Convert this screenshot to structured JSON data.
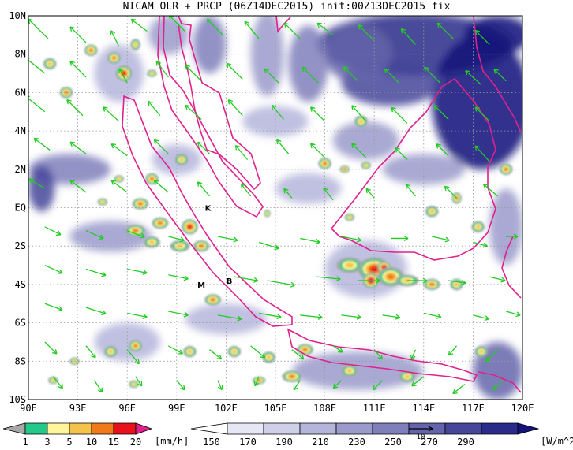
{
  "title": "NICAM OLR + PRCP (06Z14DEC2015) init:00Z13DEC2015 fix",
  "map": {
    "lon_range": [
      90,
      120
    ],
    "lat_range": [
      -10,
      10
    ],
    "x_ticks": [
      {
        "lon": 90,
        "label": "90E"
      },
      {
        "lon": 93,
        "label": "93E"
      },
      {
        "lon": 96,
        "label": "96E"
      },
      {
        "lon": 99,
        "label": "99E"
      },
      {
        "lon": 102,
        "label": "102E"
      },
      {
        "lon": 105,
        "label": "105E"
      },
      {
        "lon": 108,
        "label": "108E"
      },
      {
        "lon": 111,
        "label": "111E"
      },
      {
        "lon": 114,
        "label": "114E"
      },
      {
        "lon": 117,
        "label": "117E"
      },
      {
        "lon": 120,
        "label": "120E"
      }
    ],
    "y_ticks": [
      {
        "lat": 10,
        "label": "10N"
      },
      {
        "lat": 8,
        "label": "8N"
      },
      {
        "lat": 6,
        "label": "6N"
      },
      {
        "lat": 4,
        "label": "4N"
      },
      {
        "lat": 2,
        "label": "2N"
      },
      {
        "lat": 0,
        "label": "EQ"
      },
      {
        "lat": -2,
        "label": "2S"
      },
      {
        "lat": -4,
        "label": "4S"
      },
      {
        "lat": -6,
        "label": "6S"
      },
      {
        "lat": -8,
        "label": "8S"
      },
      {
        "lat": -10,
        "label": "10S"
      }
    ],
    "site_markers": [
      {
        "label": "K",
        "lon": 100.9,
        "lat": 0.0
      },
      {
        "label": "B",
        "lon": 102.2,
        "lat": -3.8
      },
      {
        "label": "M",
        "lon": 100.5,
        "lat": -4.0
      }
    ],
    "colors": {
      "coast": "#e0208c",
      "wind": "#22cc22",
      "grid": "#999999"
    }
  },
  "prcp_colorbar": {
    "unit": "[mm/h]",
    "levels": [
      "1",
      "3",
      "5",
      "10",
      "15",
      "20"
    ],
    "colors": [
      "#a8a8a8",
      "#22c98a",
      "#fff59c",
      "#f5c24a",
      "#f07a1a",
      "#e8101a",
      "#e0208c"
    ]
  },
  "olr_colorbar": {
    "unit": "[W/m^2]",
    "levels": [
      "150",
      "170",
      "190",
      "210",
      "230",
      "250",
      "270",
      "290"
    ],
    "colors": [
      "#ffffff",
      "#e6e6f5",
      "#cfcfea",
      "#b5b5dc",
      "#9a9acb",
      "#7f7fbc",
      "#6464ac",
      "#45459a",
      "#2a2a8a",
      "#13137a"
    ],
    "ref_vector_label": "10"
  },
  "wind_vectors": [
    [
      91.2,
      8.8,
      -25,
      25
    ],
    [
      93.5,
      8.6,
      -20,
      20
    ],
    [
      95.5,
      8.4,
      -10,
      20
    ],
    [
      97.2,
      9.2,
      -20,
      15
    ],
    [
      99.5,
      9.2,
      -20,
      20
    ],
    [
      101.8,
      9.0,
      -20,
      20
    ],
    [
      104.0,
      8.8,
      -18,
      22
    ],
    [
      106.5,
      8.8,
      -20,
      20
    ],
    [
      108.5,
      9.0,
      -20,
      15
    ],
    [
      111.0,
      8.7,
      -20,
      20
    ],
    [
      113.5,
      8.5,
      -18,
      20
    ],
    [
      115.8,
      8.8,
      -20,
      20
    ],
    [
      118.0,
      8.5,
      -18,
      18
    ],
    [
      91.0,
      7.0,
      -25,
      20
    ],
    [
      93.5,
      6.8,
      -20,
      20
    ],
    [
      96.0,
      6.5,
      -10,
      18
    ],
    [
      98.5,
      6.8,
      -15,
      20
    ],
    [
      100.5,
      6.6,
      -20,
      20
    ],
    [
      103.0,
      6.7,
      -20,
      20
    ],
    [
      105.2,
      6.5,
      -18,
      18
    ],
    [
      107.6,
      6.5,
      -20,
      20
    ],
    [
      110.0,
      6.6,
      -18,
      18
    ],
    [
      112.5,
      6.5,
      -18,
      18
    ],
    [
      115.0,
      6.5,
      -20,
      20
    ],
    [
      117.5,
      6.4,
      -20,
      18
    ],
    [
      119.0,
      6.6,
      -15,
      15
    ],
    [
      91.0,
      5.0,
      -25,
      20
    ],
    [
      93.3,
      4.8,
      -20,
      20
    ],
    [
      95.5,
      4.5,
      -20,
      18
    ],
    [
      98.0,
      4.8,
      -15,
      18
    ],
    [
      100.5,
      4.6,
      -20,
      18
    ],
    [
      103.0,
      4.8,
      -18,
      20
    ],
    [
      105.5,
      4.6,
      -15,
      18
    ],
    [
      108.0,
      4.5,
      -18,
      18
    ],
    [
      110.5,
      4.5,
      -18,
      20
    ],
    [
      113.0,
      4.4,
      -20,
      20
    ],
    [
      115.5,
      4.6,
      -18,
      18
    ],
    [
      118.0,
      4.5,
      -18,
      18
    ],
    [
      91.3,
      3.0,
      -20,
      15
    ],
    [
      93.5,
      2.8,
      -20,
      15
    ],
    [
      96.0,
      2.7,
      -20,
      15
    ],
    [
      98.5,
      2.8,
      -18,
      18
    ],
    [
      101.0,
      2.8,
      -15,
      15
    ],
    [
      103.3,
      2.5,
      -15,
      18
    ],
    [
      105.8,
      2.8,
      -15,
      18
    ],
    [
      108.0,
      2.6,
      -18,
      18
    ],
    [
      110.5,
      2.6,
      -18,
      18
    ],
    [
      113.0,
      2.5,
      -15,
      15
    ],
    [
      115.5,
      2.7,
      -15,
      15
    ],
    [
      118.0,
      2.4,
      -18,
      20
    ],
    [
      91.0,
      1.0,
      -20,
      12
    ],
    [
      93.5,
      0.8,
      -20,
      15
    ],
    [
      96.0,
      0.8,
      -20,
      15
    ],
    [
      98.5,
      0.8,
      -18,
      15
    ],
    [
      101.0,
      0.6,
      -15,
      18
    ],
    [
      103.5,
      0.6,
      -12,
      15
    ],
    [
      106.0,
      0.5,
      -10,
      12
    ],
    [
      108.5,
      0.4,
      -12,
      15
    ],
    [
      111.0,
      0.5,
      -10,
      12
    ],
    [
      113.5,
      0.6,
      -12,
      15
    ],
    [
      116.0,
      0.5,
      -15,
      15
    ],
    [
      118.5,
      0.6,
      -18,
      15
    ],
    [
      91.0,
      -1.0,
      20,
      -10
    ],
    [
      93.5,
      -1.2,
      22,
      -10
    ],
    [
      96.0,
      -1.2,
      22,
      -8
    ],
    [
      98.5,
      -1.5,
      20,
      -5
    ],
    [
      101.5,
      -1.5,
      25,
      -5
    ],
    [
      104.0,
      -1.8,
      25,
      -8
    ],
    [
      106.5,
      -1.6,
      25,
      -5
    ],
    [
      109.0,
      -1.5,
      25,
      -5
    ],
    [
      112.0,
      -1.6,
      22,
      0
    ],
    [
      114.5,
      -1.5,
      22,
      -5
    ],
    [
      117.0,
      -1.8,
      18,
      -5
    ],
    [
      119.0,
      -1.5,
      15,
      0
    ],
    [
      91.0,
      -3.0,
      22,
      -10
    ],
    [
      93.5,
      -3.2,
      25,
      -8
    ],
    [
      96.0,
      -3.2,
      25,
      -5
    ],
    [
      98.5,
      -3.5,
      25,
      -5
    ],
    [
      102.5,
      -3.6,
      30,
      -5
    ],
    [
      104.5,
      -3.8,
      35,
      -6
    ],
    [
      107.5,
      -3.6,
      30,
      -3
    ],
    [
      110.0,
      -3.8,
      28,
      0
    ],
    [
      113.0,
      -3.8,
      25,
      0
    ],
    [
      115.5,
      -3.8,
      22,
      -3
    ],
    [
      118.0,
      -3.6,
      20,
      -5
    ],
    [
      91.0,
      -5.0,
      22,
      -8
    ],
    [
      93.5,
      -5.2,
      25,
      -8
    ],
    [
      96.0,
      -5.5,
      25,
      -5
    ],
    [
      98.5,
      -5.4,
      25,
      -5
    ],
    [
      101.5,
      -5.6,
      30,
      -5
    ],
    [
      104.0,
      -5.5,
      28,
      -5
    ],
    [
      106.5,
      -5.6,
      28,
      -3
    ],
    [
      109.0,
      -5.6,
      25,
      -3
    ],
    [
      111.5,
      -5.6,
      22,
      -3
    ],
    [
      114.0,
      -5.5,
      22,
      -5
    ],
    [
      117.0,
      -5.6,
      20,
      -5
    ],
    [
      119.0,
      -5.4,
      18,
      -5
    ],
    [
      91.0,
      -7.0,
      15,
      -15
    ],
    [
      93.5,
      -7.2,
      12,
      -15
    ],
    [
      96.0,
      -7.4,
      15,
      -18
    ],
    [
      98.5,
      -7.2,
      18,
      -10
    ],
    [
      101.0,
      -7.4,
      15,
      -12
    ],
    [
      103.5,
      -7.2,
      18,
      -15
    ],
    [
      106.0,
      -7.4,
      15,
      -12
    ],
    [
      108.5,
      -7.2,
      12,
      -8
    ],
    [
      111.0,
      -7.4,
      10,
      -12
    ],
    [
      113.5,
      -7.4,
      -5,
      -12
    ],
    [
      116.0,
      -7.2,
      -10,
      -12
    ],
    [
      118.5,
      -7.4,
      -15,
      -15
    ],
    [
      91.5,
      -8.8,
      12,
      -15
    ],
    [
      94.0,
      -9.0,
      10,
      -15
    ],
    [
      96.5,
      -8.8,
      8,
      -12
    ],
    [
      99.0,
      -9.0,
      10,
      -12
    ],
    [
      101.5,
      -9.0,
      5,
      -12
    ],
    [
      104.0,
      -8.8,
      -5,
      -12
    ],
    [
      106.5,
      -9.0,
      -8,
      -12
    ],
    [
      109.0,
      -9.0,
      -10,
      -10
    ],
    [
      111.5,
      -9.0,
      -12,
      -12
    ],
    [
      114.0,
      -8.8,
      -15,
      -12
    ],
    [
      116.5,
      -9.2,
      -15,
      -12
    ],
    [
      118.8,
      -9.0,
      -12,
      -12
    ]
  ],
  "olr_clouds": [
    [
      113.5,
      8.5,
      6.0,
      1.6,
      8
    ],
    [
      117.5,
      5.5,
      3.0,
      3.5,
      9
    ],
    [
      118.5,
      9.0,
      2.0,
      1.0,
      9
    ],
    [
      112.0,
      6.5,
      3.0,
      1.2,
      7
    ],
    [
      110.0,
      8.0,
      2.0,
      1.5,
      6
    ],
    [
      107.0,
      7.5,
      1.2,
      2.0,
      5
    ],
    [
      104.5,
      8.0,
      1.0,
      2.2,
      4
    ],
    [
      101.0,
      8.5,
      1.0,
      1.5,
      5
    ],
    [
      98.5,
      9.0,
      1.2,
      1.0,
      4
    ],
    [
      95.5,
      7.0,
      1.5,
      1.5,
      3
    ],
    [
      92.5,
      2.0,
      2.5,
      0.8,
      5
    ],
    [
      90.8,
      1.0,
      0.8,
      1.2,
      7
    ],
    [
      95.0,
      -1.5,
      2.5,
      0.8,
      4
    ],
    [
      105.0,
      4.5,
      2.0,
      0.8,
      3
    ],
    [
      110.5,
      3.5,
      2.0,
      1.0,
      4
    ],
    [
      114.0,
      2.0,
      2.5,
      0.8,
      4
    ],
    [
      119.0,
      -1.0,
      1.0,
      2.0,
      4
    ],
    [
      110.5,
      -3.2,
      2.5,
      1.5,
      3
    ],
    [
      102.0,
      -5.8,
      2.5,
      0.8,
      3
    ],
    [
      96.0,
      -7.0,
      2.0,
      1.0,
      3
    ],
    [
      110.0,
      -8.5,
      4.0,
      1.0,
      4
    ],
    [
      118.5,
      -8.5,
      1.5,
      1.5,
      6
    ],
    [
      99.0,
      2.5,
      1.5,
      0.8,
      3
    ],
    [
      107.0,
      1.0,
      2.0,
      0.8,
      3
    ]
  ],
  "prcp_cells": [
    [
      111.0,
      -3.2,
      1.0,
      0.6,
      5
    ],
    [
      110.8,
      -3.8,
      0.5,
      0.4,
      6
    ],
    [
      111.6,
      -3.1,
      0.4,
      0.3,
      6
    ],
    [
      112.0,
      -3.6,
      0.8,
      0.5,
      4
    ],
    [
      109.5,
      -3.0,
      0.8,
      0.4,
      3
    ],
    [
      113.0,
      -3.8,
      0.7,
      0.3,
      3
    ],
    [
      114.5,
      -4.0,
      0.5,
      0.3,
      4
    ],
    [
      116.0,
      -4.0,
      0.4,
      0.3,
      3
    ],
    [
      96.5,
      -1.2,
      0.6,
      0.3,
      4
    ],
    [
      98.0,
      -0.8,
      0.5,
      0.3,
      4
    ],
    [
      99.8,
      -1.0,
      0.5,
      0.4,
      5
    ],
    [
      100.5,
      -2.0,
      0.5,
      0.3,
      4
    ],
    [
      99.2,
      -2.0,
      0.6,
      0.3,
      3
    ],
    [
      97.5,
      -1.8,
      0.5,
      0.3,
      3
    ],
    [
      96.8,
      0.2,
      0.5,
      0.3,
      4
    ],
    [
      97.5,
      1.5,
      0.4,
      0.3,
      4
    ],
    [
      95.5,
      1.5,
      0.3,
      0.2,
      3
    ],
    [
      94.5,
      0.3,
      0.3,
      0.2,
      3
    ],
    [
      101.2,
      -4.8,
      0.5,
      0.3,
      4
    ],
    [
      93.8,
      8.2,
      0.4,
      0.3,
      4
    ],
    [
      95.2,
      7.8,
      0.4,
      0.3,
      4
    ],
    [
      95.8,
      7.0,
      0.5,
      0.4,
      5
    ],
    [
      96.5,
      8.5,
      0.3,
      0.3,
      3
    ],
    [
      92.3,
      6.0,
      0.4,
      0.3,
      4
    ],
    [
      91.3,
      7.5,
      0.4,
      0.3,
      3
    ],
    [
      97.5,
      7.0,
      0.3,
      0.2,
      3
    ],
    [
      108.0,
      2.3,
      0.4,
      0.3,
      4
    ],
    [
      109.2,
      2.0,
      0.3,
      0.2,
      4
    ],
    [
      110.5,
      2.2,
      0.3,
      0.2,
      3
    ],
    [
      110.2,
      4.5,
      0.4,
      0.3,
      3
    ],
    [
      116.0,
      0.5,
      0.3,
      0.3,
      4
    ],
    [
      119.0,
      2.0,
      0.4,
      0.3,
      4
    ],
    [
      117.3,
      -1.0,
      0.4,
      0.3,
      3
    ],
    [
      114.5,
      -0.2,
      0.4,
      0.3,
      3
    ],
    [
      109.5,
      -0.5,
      0.3,
      0.2,
      3
    ],
    [
      104.5,
      -0.3,
      0.2,
      0.2,
      3
    ],
    [
      96.5,
      -7.2,
      0.4,
      0.3,
      4
    ],
    [
      95.0,
      -7.5,
      0.4,
      0.3,
      3
    ],
    [
      99.8,
      -7.5,
      0.4,
      0.3,
      3
    ],
    [
      102.5,
      -7.5,
      0.4,
      0.3,
      3
    ],
    [
      106.8,
      -7.4,
      0.5,
      0.3,
      4
    ],
    [
      104.6,
      -7.8,
      0.4,
      0.3,
      3
    ],
    [
      106.0,
      -8.8,
      0.6,
      0.3,
      4
    ],
    [
      109.5,
      -8.5,
      0.5,
      0.3,
      3
    ],
    [
      113.0,
      -8.8,
      0.5,
      0.3,
      3
    ],
    [
      117.5,
      -7.5,
      0.4,
      0.3,
      3
    ],
    [
      92.8,
      -8.0,
      0.3,
      0.2,
      3
    ],
    [
      91.5,
      -9.0,
      0.3,
      0.2,
      3
    ],
    [
      99.3,
      2.5,
      0.4,
      0.3,
      3
    ],
    [
      96.4,
      -9.2,
      0.3,
      0.2,
      3
    ],
    [
      104.0,
      -9.0,
      0.4,
      0.2,
      4
    ]
  ]
}
